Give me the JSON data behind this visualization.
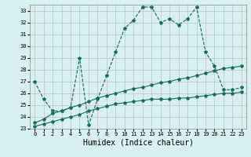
{
  "title": "",
  "xlabel": "Humidex (Indice chaleur)",
  "ylabel": "",
  "bg_color": "#d8f0f0",
  "grid_color": "#c0c0c0",
  "line_color": "#1a6b5a",
  "xlim": [
    -0.5,
    23.5
  ],
  "ylim": [
    23,
    33.5
  ],
  "yticks": [
    23,
    24,
    25,
    26,
    27,
    28,
    29,
    30,
    31,
    32,
    33
  ],
  "xticks": [
    0,
    1,
    2,
    3,
    4,
    5,
    6,
    7,
    8,
    9,
    10,
    11,
    12,
    13,
    14,
    15,
    16,
    17,
    18,
    19,
    20,
    21,
    22,
    23
  ],
  "line1_x": [
    0,
    1,
    2,
    3,
    4,
    5,
    6,
    7,
    8,
    9,
    10,
    11,
    12,
    13,
    14,
    15,
    16,
    17,
    18,
    19,
    20,
    21,
    22,
    23
  ],
  "line1_y": [
    27.0,
    25.5,
    24.5,
    24.5,
    24.8,
    29.0,
    23.3,
    25.5,
    27.5,
    29.5,
    31.5,
    32.2,
    33.3,
    33.3,
    32.0,
    32.3,
    31.8,
    32.3,
    33.3,
    29.5,
    28.3,
    26.3,
    26.3,
    26.5
  ],
  "line2_x": [
    0,
    1,
    2,
    3,
    4,
    5,
    6,
    7,
    8,
    9,
    10,
    11,
    12,
    13,
    14,
    15,
    16,
    17,
    18,
    19,
    20,
    21,
    22,
    23
  ],
  "line2_y": [
    23.5,
    23.8,
    24.3,
    24.5,
    24.8,
    25.0,
    25.3,
    25.6,
    25.8,
    26.0,
    26.2,
    26.4,
    26.5,
    26.7,
    26.9,
    27.0,
    27.2,
    27.3,
    27.5,
    27.7,
    27.9,
    28.1,
    28.2,
    28.3
  ],
  "line3_x": [
    0,
    1,
    2,
    3,
    4,
    5,
    6,
    7,
    8,
    9,
    10,
    11,
    12,
    13,
    14,
    15,
    16,
    17,
    18,
    19,
    20,
    21,
    22,
    23
  ],
  "line3_y": [
    23.2,
    23.4,
    23.6,
    23.8,
    24.0,
    24.2,
    24.5,
    24.7,
    24.9,
    25.1,
    25.2,
    25.3,
    25.4,
    25.5,
    25.5,
    25.5,
    25.6,
    25.6,
    25.7,
    25.8,
    25.9,
    26.0,
    26.0,
    26.1
  ],
  "tick_fontsize": 5,
  "xlabel_fontsize": 7,
  "marker_size": 3,
  "linewidth": 0.8
}
